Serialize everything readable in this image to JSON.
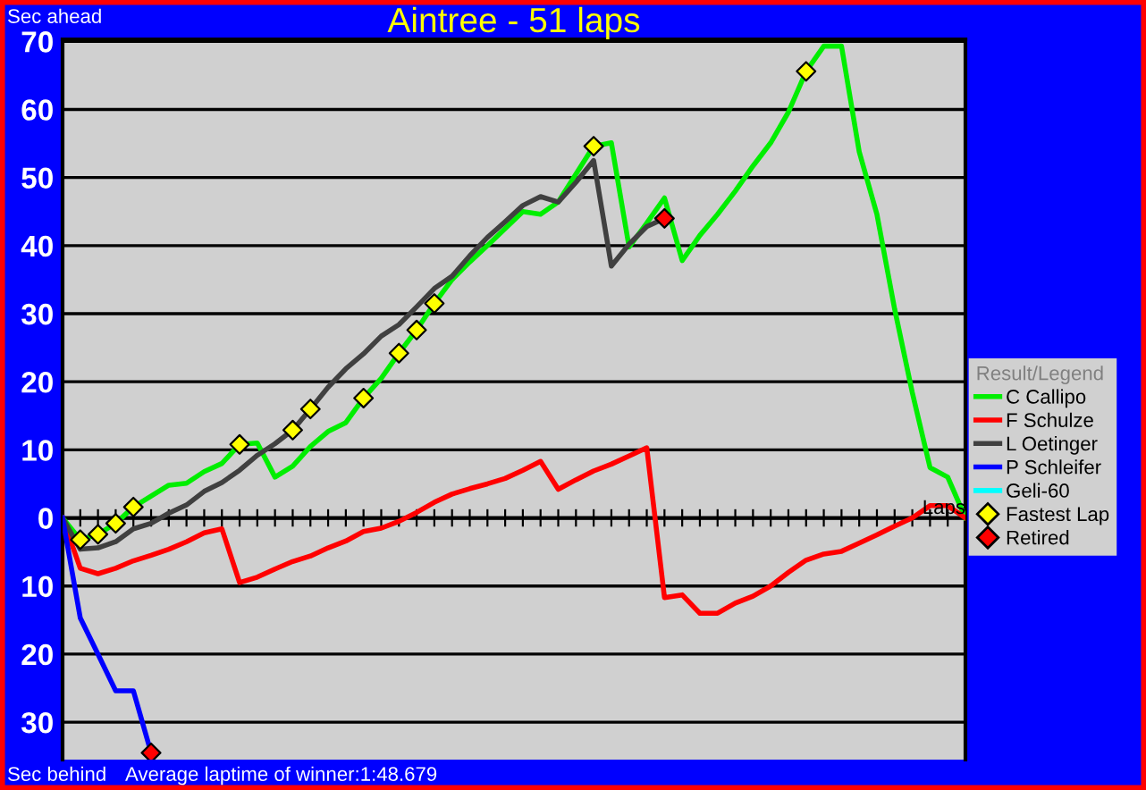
{
  "chart_data": {
    "type": "line",
    "title": "Aintree - 51 laps",
    "ylabel": "Sec ahead",
    "xlabel": "Laps",
    "legend_title": "Result/Legend",
    "annotations": [
      "Sec behind",
      "Average laptime of winner:1:48.679"
    ],
    "categories": [
      null,
      null,
      null,
      null,
      null,
      null,
      null,
      null,
      null,
      null,
      null,
      null,
      null,
      null,
      null,
      null,
      null,
      null,
      null,
      null,
      null,
      null,
      null,
      null,
      null,
      null,
      null,
      null,
      null,
      null,
      null,
      null,
      null,
      null,
      null,
      null,
      null,
      null,
      null,
      null,
      null,
      null,
      null,
      null,
      null,
      null,
      null,
      null,
      null,
      null,
      null,
      null
    ],
    "ylim": [
      -35.5,
      70.3
    ],
    "yticks": [
      {
        "value": -30,
        "label": "30"
      },
      {
        "value": -20,
        "label": "20"
      },
      {
        "value": -10,
        "label": "10"
      },
      0,
      10,
      20,
      30,
      40,
      50,
      60,
      70
    ],
    "tick_labels": "y",
    "grid": "y",
    "legend": "right",
    "marker": "none",
    "line_style": "solid",
    "series": [
      {
        "name": "C Callipo",
        "color": "#00ee00",
        "values": [
          0,
          -3.2,
          -2.4,
          -0.8,
          1.6,
          3.2,
          4.8,
          5.1,
          6.8,
          8,
          10.8,
          11,
          6,
          7.6,
          10.5,
          12.7,
          14,
          17.6,
          20.5,
          24.2,
          27.6,
          31.5,
          35,
          37.6,
          40,
          42.5,
          45,
          44.6,
          46.4,
          50.5,
          54.6,
          55.1,
          39.8,
          43.3,
          47,
          37.8,
          41.5,
          44.6,
          48,
          51.7,
          55.1,
          59.6,
          65.6,
          69.3,
          69.3,
          53.8,
          44.6,
          30.7,
          18.4,
          7.4,
          6,
          0
        ]
      },
      {
        "name": "F Schulze",
        "color": "#ff0000",
        "values": [
          0,
          -7.4,
          -8.2,
          -7.4,
          -6.3,
          -5.5,
          -4.6,
          -3.5,
          -2.2,
          -1.6,
          -9.5,
          -8.7,
          -7.5,
          -6.4,
          -5.6,
          -4.4,
          -3.4,
          -2,
          -1.5,
          -0.5,
          0.8,
          2.3,
          3.5,
          4.3,
          5,
          5.8,
          7,
          8.3,
          4.2,
          5.6,
          6.9,
          7.9,
          9.1,
          10.3,
          -11.7,
          -11.3,
          -14,
          -14,
          -12.5,
          -11.5,
          -10,
          -8,
          -6.2,
          -5.3,
          -4.9,
          -3.7,
          -2.5,
          -1.2,
          0,
          1.8,
          1.8,
          0
        ]
      },
      {
        "name": "L Oetinger",
        "color": "#404040",
        "values": [
          0,
          -4.6,
          -4.4,
          -3.5,
          -1.6,
          -0.8,
          0.7,
          1.9,
          3.9,
          5.2,
          7,
          9.2,
          10.9,
          12.9,
          16,
          19.2,
          21.9,
          24.1,
          26.7,
          28.4,
          31,
          33.7,
          35.5,
          38.5,
          41.2,
          43.5,
          45.9,
          47.2,
          46.4,
          49.3,
          52.5,
          37,
          40.2,
          42.8,
          44,
          null,
          null,
          null,
          null,
          null,
          null,
          null,
          null,
          null,
          null,
          null,
          null,
          null,
          null,
          null,
          null,
          null
        ]
      },
      {
        "name": "P Schleifer",
        "color": "#0000ff",
        "values": [
          0,
          -14.7,
          -20,
          -25.4,
          -25.4,
          -34.5,
          null,
          null,
          null,
          null,
          null,
          null,
          null,
          null,
          null,
          null,
          null,
          null,
          null,
          null,
          null,
          null,
          null,
          null,
          null,
          null,
          null,
          null,
          null,
          null,
          null,
          null,
          null,
          null,
          null,
          null,
          null,
          null,
          null,
          null,
          null,
          null,
          null,
          null,
          null,
          null,
          null,
          null,
          null,
          null,
          null,
          null
        ]
      },
      {
        "name": "Geli-60",
        "color": "#00ffff",
        "values": [
          null,
          null,
          null,
          null,
          null,
          null,
          null,
          null,
          null,
          null,
          null,
          null,
          null,
          null,
          null,
          null,
          null,
          null,
          null,
          null,
          null,
          null,
          null,
          null,
          null,
          null,
          null,
          null,
          null,
          null,
          null,
          null,
          null,
          null,
          null,
          null,
          null,
          null,
          null,
          null,
          null,
          null,
          null,
          null,
          null,
          null,
          null,
          null,
          null,
          null,
          null,
          null
        ]
      },
      {
        "name": "Fastest Lap",
        "type": "scatter",
        "marker": "diamond",
        "color": "#ffff00",
        "values": [
          null,
          -3.2,
          -2.4,
          -0.8,
          1.6,
          null,
          null,
          null,
          null,
          null,
          10.8,
          null,
          null,
          12.9,
          16,
          null,
          null,
          17.6,
          null,
          24.2,
          27.6,
          31.5,
          null,
          null,
          null,
          null,
          null,
          null,
          null,
          null,
          54.6,
          null,
          null,
          null,
          null,
          null,
          null,
          null,
          null,
          null,
          null,
          null,
          65.6,
          null,
          null,
          null,
          null,
          null,
          null,
          null,
          null,
          null
        ]
      },
      {
        "name": "Retired",
        "type": "scatter",
        "marker": "diamond",
        "color": "#ff0000",
        "values": [
          null,
          null,
          null,
          null,
          null,
          -34.5,
          null,
          null,
          null,
          null,
          null,
          null,
          null,
          null,
          null,
          null,
          null,
          null,
          null,
          null,
          null,
          null,
          null,
          null,
          null,
          null,
          null,
          null,
          null,
          null,
          null,
          null,
          null,
          null,
          44,
          null,
          null,
          null,
          null,
          null,
          null,
          null,
          null,
          null,
          null,
          null,
          null,
          null,
          null,
          null,
          null,
          null
        ]
      }
    ]
  }
}
